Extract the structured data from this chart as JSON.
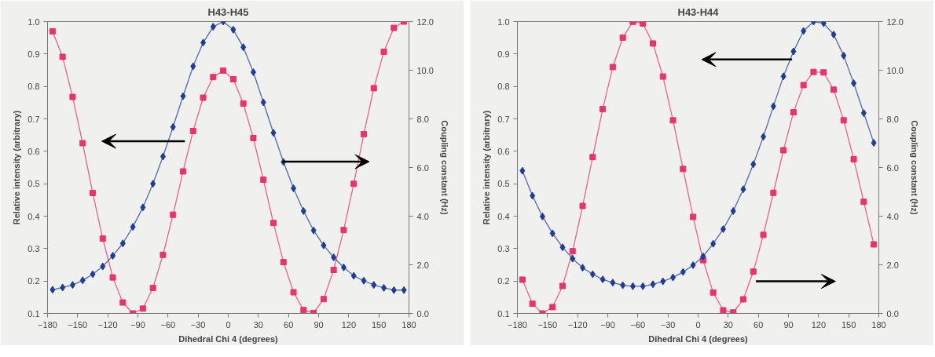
{
  "chart_data": [
    {
      "type": "line",
      "title": "H43-H45",
      "xlabel": "Dihedral Chi 4 (degrees)",
      "ylabel": "Relative intensity (arbitrary)",
      "y2label": "Coupling constant (Hz)",
      "grid": false,
      "xlim": [
        -180,
        180
      ],
      "xticks": [
        -180,
        -150,
        -120,
        -90,
        -60,
        -30,
        0,
        30,
        60,
        90,
        120,
        150,
        180
      ],
      "ylim": [
        0.1,
        1.0
      ],
      "yticks": [
        0.1,
        0.2,
        0.3,
        0.4,
        0.5,
        0.6,
        0.7,
        0.8,
        0.9,
        {
          "value": 1.0,
          "label": "1.0"
        }
      ],
      "y2lim": [
        0,
        12
      ],
      "y2ticks": [
        {
          "value": 0,
          "label": "0.0"
        },
        {
          "value": 2,
          "label": "2.0"
        },
        {
          "value": 4,
          "label": "4.0"
        },
        {
          "value": 6,
          "label": "6.0"
        },
        {
          "value": 8,
          "label": "8.0"
        },
        {
          "value": 10,
          "label": "10.0"
        },
        {
          "value": 12,
          "label": "12.0"
        }
      ],
      "x": [
        -175,
        -165,
        -155,
        -145,
        -135,
        -125,
        -115,
        -105,
        -95,
        -85,
        -75,
        -65,
        -55,
        -45,
        -35,
        -25,
        -15,
        -5,
        5,
        15,
        25,
        35,
        45,
        55,
        65,
        75,
        85,
        95,
        105,
        115,
        125,
        135,
        145,
        155,
        165,
        175
      ],
      "series": [
        {
          "color": "#1f3d96",
          "marker": "diamond",
          "values": [
            0.173,
            0.18,
            0.188,
            0.202,
            0.221,
            0.245,
            0.278,
            0.316,
            0.367,
            0.427,
            0.5,
            0.584,
            0.675,
            0.77,
            0.862,
            0.935,
            0.984,
            1.0,
            0.975,
            0.921,
            0.844,
            0.751,
            0.657,
            0.567,
            0.486,
            0.416,
            0.356,
            0.31,
            0.273,
            0.242,
            0.216,
            0.201,
            0.188,
            0.179,
            0.172,
            0.172
          ]
        },
        {
          "color": "#e8336e",
          "marker": "square",
          "axis": "y2",
          "values": [
            11.6,
            10.55,
            8.9,
            7.0,
            4.95,
            3.08,
            1.48,
            0.45,
            0.0,
            0.2,
            1.05,
            2.41,
            4.06,
            5.84,
            7.5,
            8.87,
            9.72,
            9.98,
            9.63,
            8.63,
            7.21,
            5.5,
            3.72,
            2.11,
            0.87,
            0.14,
            0.02,
            0.59,
            1.79,
            3.43,
            5.33,
            7.37,
            9.26,
            10.76,
            11.74,
            12.0
          ]
        }
      ]
    },
    {
      "type": "line",
      "title": "H43-H44",
      "xlabel": "Dihedral Chi 4 (degrees)",
      "ylabel": "Relative intensity (arbitrary)",
      "y2label": "Coupling constant (Hz)",
      "grid": false,
      "xlim": [
        -180,
        180
      ],
      "xticks": [
        -180,
        -150,
        -120,
        -90,
        -60,
        -30,
        0,
        30,
        60,
        90,
        120,
        150,
        180
      ],
      "ylim": [
        0.1,
        1.0
      ],
      "yticks": [
        0.1,
        0.2,
        0.3,
        0.4,
        0.5,
        0.6,
        0.7,
        0.8,
        0.9,
        {
          "value": 1.0,
          "label": "1.0"
        }
      ],
      "y2lim": [
        0,
        12
      ],
      "y2ticks": [
        {
          "value": 0,
          "label": "0.0"
        },
        {
          "value": 2,
          "label": "2.0"
        },
        {
          "value": 4,
          "label": "4.0"
        },
        {
          "value": 6,
          "label": "6.0"
        },
        {
          "value": 8,
          "label": "8.0"
        },
        {
          "value": 10,
          "label": "10.0"
        },
        {
          "value": 12,
          "label": "12.0"
        }
      ],
      "x": [
        -175,
        -165,
        -155,
        -145,
        -135,
        -125,
        -115,
        -105,
        -95,
        -85,
        -75,
        -65,
        -55,
        -45,
        -35,
        -25,
        -15,
        -5,
        5,
        15,
        25,
        35,
        45,
        55,
        65,
        75,
        85,
        95,
        105,
        115,
        125,
        135,
        145,
        155,
        165,
        175
      ],
      "series": [
        {
          "color": "#1f3d96",
          "marker": "diamond",
          "values": [
            0.54,
            0.463,
            0.399,
            0.347,
            0.304,
            0.269,
            0.241,
            0.221,
            0.205,
            0.195,
            0.187,
            0.184,
            0.184,
            0.19,
            0.199,
            0.211,
            0.228,
            0.249,
            0.276,
            0.315,
            0.36,
            0.416,
            0.483,
            0.56,
            0.645,
            0.739,
            0.831,
            0.908,
            0.971,
            1.0,
            0.995,
            0.96,
            0.895,
            0.81,
            0.718,
            0.626
          ]
        },
        {
          "color": "#e8336e",
          "marker": "square",
          "axis": "y2",
          "values": [
            1.39,
            0.4,
            0.0,
            0.26,
            1.13,
            2.56,
            4.42,
            6.43,
            8.4,
            10.13,
            11.34,
            11.99,
            11.92,
            11.1,
            9.74,
            7.94,
            5.94,
            3.97,
            2.19,
            0.86,
            0.13,
            0.04,
            0.58,
            1.72,
            3.23,
            4.96,
            6.71,
            8.27,
            9.39,
            9.93,
            9.91,
            9.2,
            7.94,
            6.34,
            4.59,
            2.84
          ]
        }
      ]
    }
  ]
}
